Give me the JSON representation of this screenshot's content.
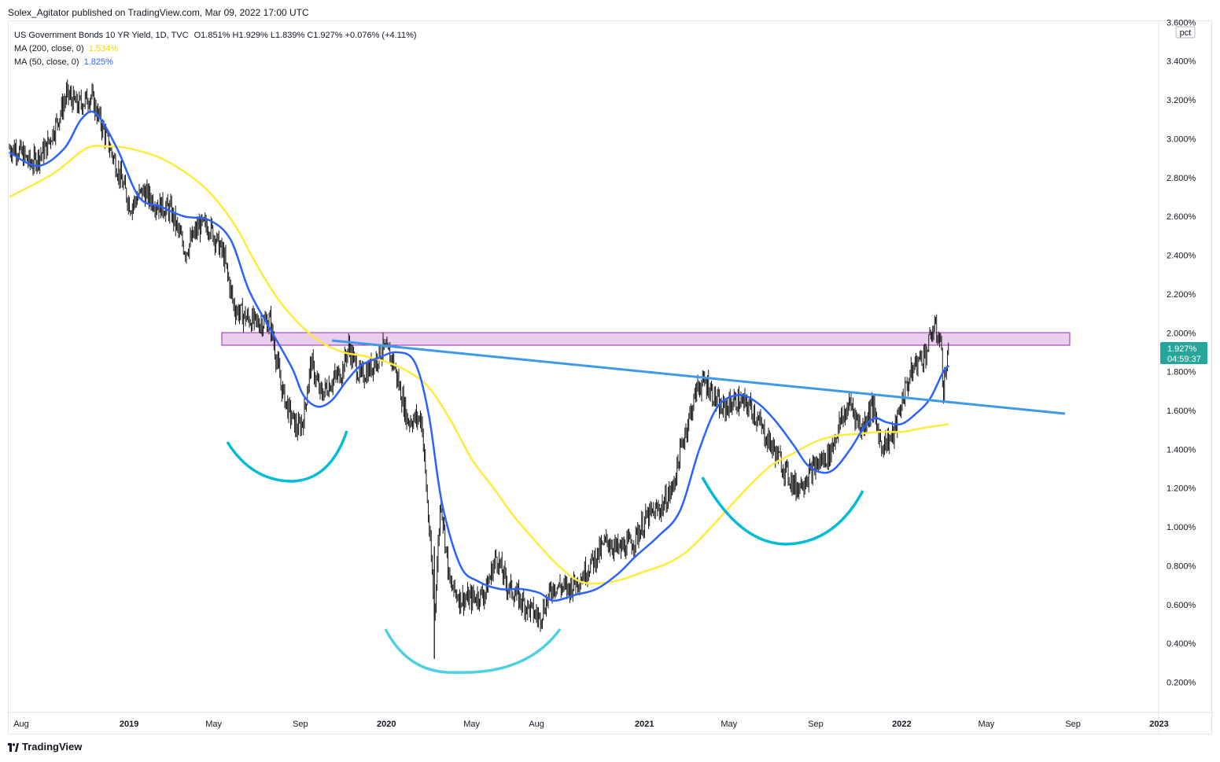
{
  "publisher": "Solex_Agitator published on TradingView.com, Mar 09, 2022 17:00 UTC",
  "legend": {
    "symbol": "US Government Bonds 10 YR Yield, 1D, TVC",
    "ohlc": "O1.851% H1.929% L1.839% C1.927% +0.076% (+4.11%)",
    "ma200_label": "MA (200, close, 0)",
    "ma200_value": "1.534%",
    "ma50_label": "MA (50, close, 0)",
    "ma50_value": "1.825%"
  },
  "axis": {
    "unit_label": "pct",
    "price_tag": "1.927%",
    "countdown": "04:59:37"
  },
  "brand": "TradingView",
  "colors": {
    "ma200": "#ffeb3b",
    "ma50": "#2962ff",
    "trendline": "#3d9ae8",
    "zone_fill": "#e1bee7",
    "zone_border": "#9c27b0",
    "arc": "#00bcd4",
    "price_tag": "#26a69a",
    "candles": "#000000"
  },
  "chart_data": {
    "type": "line",
    "title": "",
    "xlabel": "",
    "ylabel": "",
    "ylim": [
      0.0,
      3.65
    ],
    "y_ticks": [
      "0.200%",
      "0.400%",
      "0.600%",
      "0.800%",
      "1.000%",
      "1.200%",
      "1.400%",
      "1.600%",
      "1.800%",
      "2.000%",
      "2.200%",
      "2.400%",
      "2.600%",
      "2.800%",
      "3.000%",
      "3.200%",
      "3.400%",
      "3.600%"
    ],
    "x_ticks": [
      "Aug",
      "2019",
      "May",
      "Sep",
      "2020",
      "May",
      "Aug",
      "2021",
      "May",
      "Sep",
      "2022",
      "May",
      "Sep",
      "2023"
    ],
    "x_ticks_bold": [
      "2019",
      "2020",
      "2021",
      "2022",
      "2023"
    ],
    "series": [
      {
        "name": "US Government Bonds 10 YR Yield",
        "style": "bars",
        "x": [
          "2018-07-25",
          "2018-08-15",
          "2018-09-05",
          "2018-09-20",
          "2018-10-05",
          "2018-10-20",
          "2018-11-08",
          "2018-11-25",
          "2018-12-15",
          "2019-01-03",
          "2019-01-20",
          "2019-02-10",
          "2019-03-01",
          "2019-03-22",
          "2019-04-10",
          "2019-04-25",
          "2019-05-15",
          "2019-05-30",
          "2019-06-15",
          "2019-07-01",
          "2019-07-20",
          "2019-08-05",
          "2019-08-15",
          "2019-08-28",
          "2019-09-05",
          "2019-09-16",
          "2019-09-30",
          "2019-10-15",
          "2019-10-30",
          "2019-11-08",
          "2019-11-25",
          "2019-12-10",
          "2019-12-27",
          "2020-01-10",
          "2020-01-31",
          "2020-02-20",
          "2020-03-06",
          "2020-03-09",
          "2020-03-18",
          "2020-03-31",
          "2020-04-15",
          "2020-05-01",
          "2020-05-20",
          "2020-06-05",
          "2020-06-20",
          "2020-07-10",
          "2020-07-30",
          "2020-08-05",
          "2020-08-25",
          "2020-09-15",
          "2020-10-05",
          "2020-10-25",
          "2020-11-09",
          "2020-11-25",
          "2020-12-15",
          "2021-01-05",
          "2021-01-25",
          "2021-02-10",
          "2021-02-25",
          "2021-03-18",
          "2021-03-31",
          "2021-04-20",
          "2021-05-10",
          "2021-06-01",
          "2021-06-20",
          "2021-07-08",
          "2021-07-20",
          "2021-08-04",
          "2021-08-20",
          "2021-09-05",
          "2021-09-20",
          "2021-10-05",
          "2021-10-20",
          "2021-11-05",
          "2021-11-20",
          "2021-12-03",
          "2021-12-20",
          "2022-01-05",
          "2022-01-20",
          "2022-02-05",
          "2022-02-15",
          "2022-02-25",
          "2022-03-01",
          "2022-03-09"
        ],
        "values": [
          2.95,
          2.87,
          2.95,
          3.08,
          3.23,
          3.17,
          3.22,
          3.05,
          2.85,
          2.65,
          2.73,
          2.66,
          2.63,
          2.42,
          2.55,
          2.55,
          2.4,
          2.13,
          2.08,
          2.05,
          2.06,
          1.72,
          1.6,
          1.5,
          1.55,
          1.85,
          1.68,
          1.75,
          1.8,
          1.93,
          1.77,
          1.82,
          1.92,
          1.86,
          1.55,
          1.56,
          0.75,
          0.54,
          1.15,
          0.7,
          0.63,
          0.63,
          0.66,
          0.85,
          0.7,
          0.62,
          0.55,
          0.53,
          0.7,
          0.68,
          0.75,
          0.85,
          0.93,
          0.88,
          0.92,
          1.05,
          1.1,
          1.2,
          1.45,
          1.73,
          1.74,
          1.6,
          1.65,
          1.62,
          1.48,
          1.37,
          1.29,
          1.2,
          1.26,
          1.33,
          1.37,
          1.53,
          1.64,
          1.5,
          1.63,
          1.42,
          1.47,
          1.7,
          1.84,
          1.9,
          2.03,
          1.97,
          1.7,
          1.93
        ]
      },
      {
        "name": "MA (50, close, 0)",
        "x": [
          "2018-07-15",
          "2018-08-25",
          "2018-10-01",
          "2018-10-25",
          "2018-11-15",
          "2018-12-15",
          "2019-01-15",
          "2019-02-15",
          "2019-03-20",
          "2019-04-25",
          "2019-05-25",
          "2019-06-20",
          "2019-07-20",
          "2019-08-20",
          "2019-09-05",
          "2019-09-25",
          "2019-10-15",
          "2019-11-05",
          "2019-11-25",
          "2019-12-20",
          "2020-01-15",
          "2020-02-10",
          "2020-03-01",
          "2020-03-20",
          "2020-04-15",
          "2020-05-10",
          "2020-06-10",
          "2020-07-10",
          "2020-08-05",
          "2020-08-25",
          "2020-09-25",
          "2020-10-25",
          "2020-11-25",
          "2020-12-20",
          "2021-01-20",
          "2021-02-20",
          "2021-03-20",
          "2021-04-15",
          "2021-05-15",
          "2021-06-10",
          "2021-07-05",
          "2021-08-01",
          "2021-08-20",
          "2021-09-10",
          "2021-09-28",
          "2021-10-20",
          "2021-11-10",
          "2021-11-25",
          "2021-12-10",
          "2021-12-31",
          "2022-01-20",
          "2022-02-10",
          "2022-03-01",
          "2022-03-09"
        ],
        "values": [
          2.93,
          2.86,
          2.95,
          3.1,
          3.13,
          2.95,
          2.7,
          2.65,
          2.6,
          2.58,
          2.48,
          2.22,
          2.02,
          1.82,
          1.68,
          1.62,
          1.65,
          1.75,
          1.83,
          1.87,
          1.9,
          1.85,
          1.58,
          1.12,
          0.8,
          0.72,
          0.68,
          0.68,
          0.66,
          0.62,
          0.65,
          0.68,
          0.76,
          0.85,
          0.95,
          1.08,
          1.4,
          1.62,
          1.68,
          1.64,
          1.55,
          1.42,
          1.32,
          1.28,
          1.3,
          1.4,
          1.52,
          1.56,
          1.54,
          1.53,
          1.58,
          1.66,
          1.8,
          1.83
        ]
      },
      {
        "name": "MA (200, close, 0)",
        "x": [
          "2018-07-15",
          "2018-09-15",
          "2018-11-01",
          "2018-12-01",
          "2019-01-01",
          "2019-02-15",
          "2019-04-01",
          "2019-05-01",
          "2019-06-01",
          "2019-07-01",
          "2019-08-01",
          "2019-09-01",
          "2019-10-01",
          "2019-11-01",
          "2019-12-01",
          "2020-01-01",
          "2020-02-01",
          "2020-03-01",
          "2020-04-01",
          "2020-05-01",
          "2020-06-01",
          "2020-07-01",
          "2020-08-01",
          "2020-09-01",
          "2020-10-01",
          "2020-11-01",
          "2020-12-01",
          "2021-01-01",
          "2021-02-01",
          "2021-03-01",
          "2021-04-01",
          "2021-05-01",
          "2021-06-01",
          "2021-07-01",
          "2021-08-01",
          "2021-09-01",
          "2021-10-01",
          "2021-11-01",
          "2021-12-01",
          "2022-01-01",
          "2022-02-01",
          "2022-03-09"
        ],
        "values": [
          2.7,
          2.82,
          2.95,
          2.96,
          2.95,
          2.9,
          2.8,
          2.7,
          2.55,
          2.35,
          2.17,
          2.04,
          1.95,
          1.9,
          1.88,
          1.85,
          1.8,
          1.72,
          1.55,
          1.35,
          1.2,
          1.05,
          0.92,
          0.8,
          0.72,
          0.71,
          0.73,
          0.77,
          0.81,
          0.87,
          0.98,
          1.1,
          1.22,
          1.32,
          1.38,
          1.44,
          1.47,
          1.48,
          1.49,
          1.49,
          1.51,
          1.53
        ]
      }
    ]
  }
}
